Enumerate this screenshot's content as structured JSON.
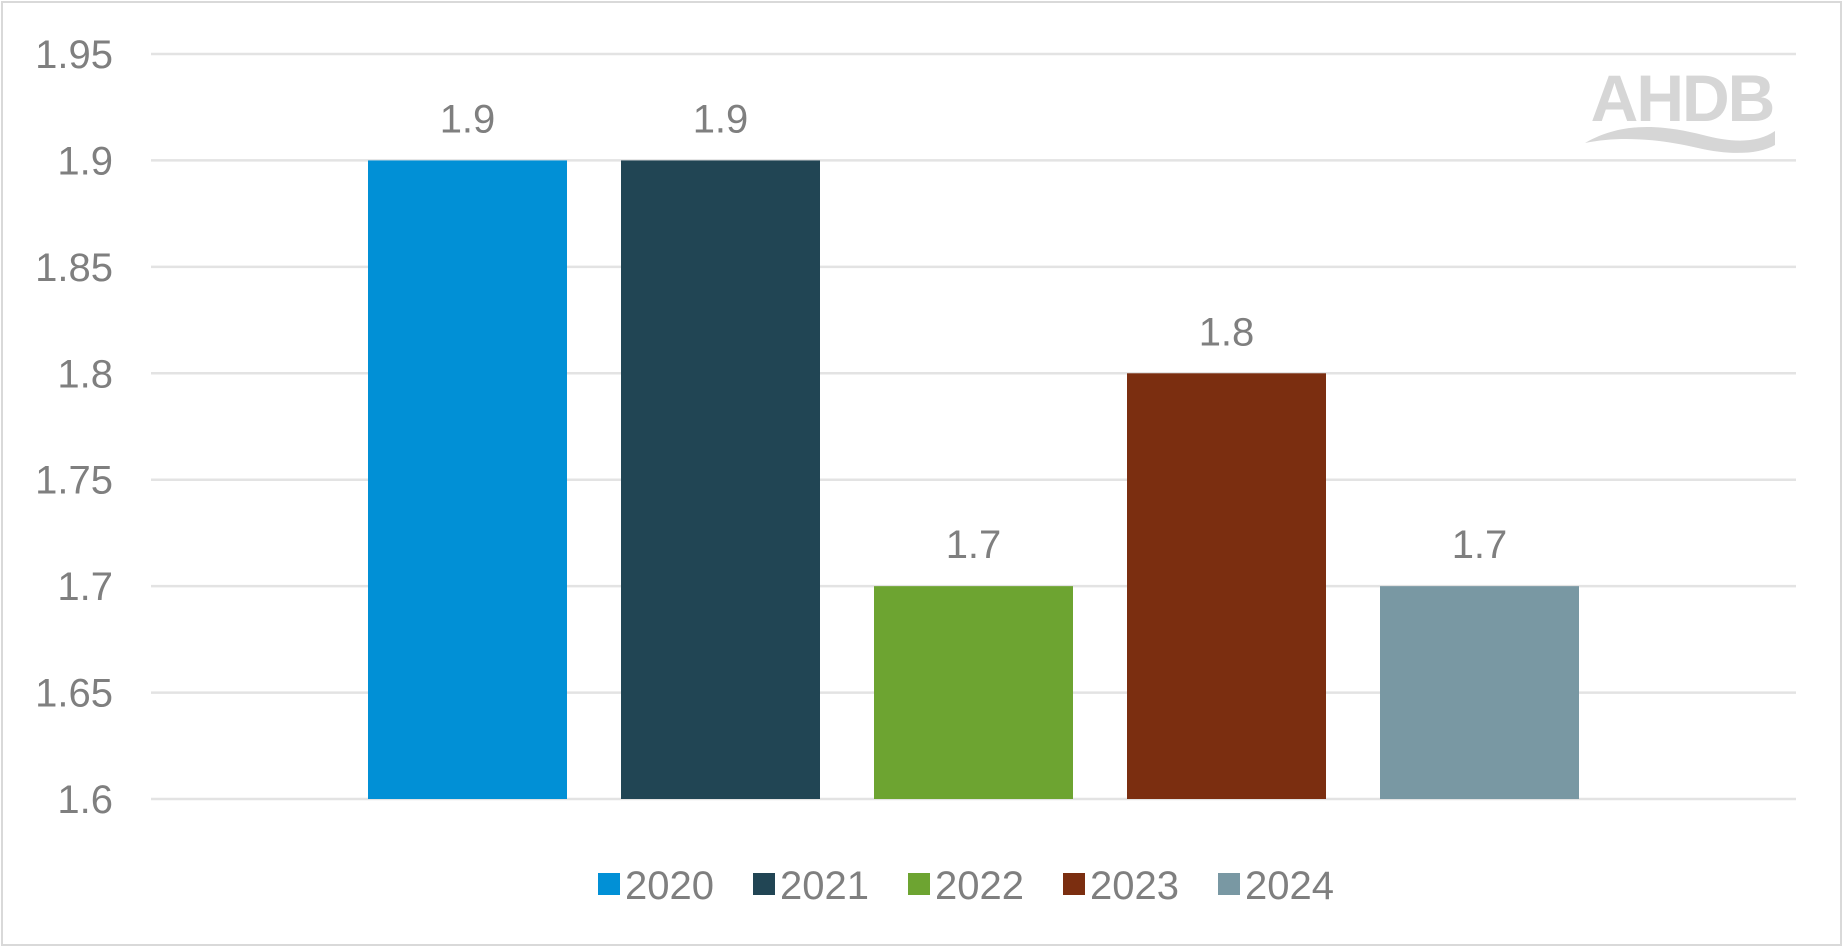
{
  "logo": {
    "text": "AHDB",
    "color": "#d6d6d6"
  },
  "chart_data": {
    "type": "bar",
    "title": "",
    "xlabel": "",
    "ylabel": "",
    "ylim": [
      1.6,
      1.95
    ],
    "yticks": [
      "1.6",
      "1.65",
      "1.7",
      "1.75",
      "1.8",
      "1.85",
      "1.9",
      "1.95"
    ],
    "grid": true,
    "legend_position": "bottom",
    "series": [
      {
        "name": "2020",
        "value": 1.9,
        "label": "1.9",
        "color": "#0190d6"
      },
      {
        "name": "2021",
        "value": 1.9,
        "label": "1.9",
        "color": "#214554"
      },
      {
        "name": "2022",
        "value": 1.7,
        "label": "1.7",
        "color": "#6da431"
      },
      {
        "name": "2023",
        "value": 1.8,
        "label": "1.8",
        "color": "#7b2e10"
      },
      {
        "name": "2024",
        "value": 1.7,
        "label": "1.7",
        "color": "#7998a3"
      }
    ]
  }
}
